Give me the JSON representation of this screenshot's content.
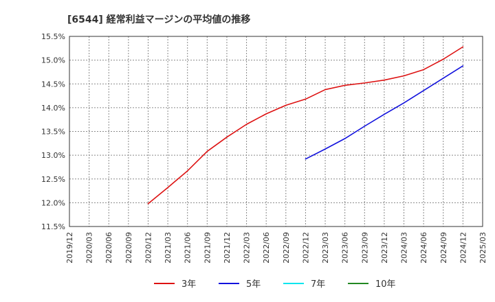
{
  "chart_data": {
    "type": "line",
    "title": "[6544]  経常利益マージンの平均値の推移",
    "xlabel": "",
    "ylabel": "",
    "ylim": [
      11.5,
      15.5
    ],
    "y_ticks": [
      "11.5%",
      "12.0%",
      "12.5%",
      "13.0%",
      "13.5%",
      "14.0%",
      "14.5%",
      "15.0%",
      "15.5%"
    ],
    "x_ticks": [
      "2019/12",
      "2020/03",
      "2020/06",
      "2020/09",
      "2020/12",
      "2021/03",
      "2021/06",
      "2021/09",
      "2021/12",
      "2022/03",
      "2022/06",
      "2022/09",
      "2022/12",
      "2023/03",
      "2023/06",
      "2023/09",
      "2023/12",
      "2024/03",
      "2024/06",
      "2024/09",
      "2024/12",
      "2025/03"
    ],
    "grid": true,
    "legend_position": "bottom",
    "series": [
      {
        "name": "3年",
        "color": "#dd1111",
        "points": [
          {
            "x": "2020/12",
            "y": 11.98
          },
          {
            "x": "2021/03",
            "y": 12.32
          },
          {
            "x": "2021/06",
            "y": 12.67
          },
          {
            "x": "2021/09",
            "y": 13.08
          },
          {
            "x": "2021/12",
            "y": 13.38
          },
          {
            "x": "2022/03",
            "y": 13.65
          },
          {
            "x": "2022/06",
            "y": 13.87
          },
          {
            "x": "2022/09",
            "y": 14.05
          },
          {
            "x": "2022/12",
            "y": 14.18
          },
          {
            "x": "2023/03",
            "y": 14.38
          },
          {
            "x": "2023/06",
            "y": 14.47
          },
          {
            "x": "2023/09",
            "y": 14.52
          },
          {
            "x": "2023/12",
            "y": 14.58
          },
          {
            "x": "2024/03",
            "y": 14.67
          },
          {
            "x": "2024/06",
            "y": 14.8
          },
          {
            "x": "2024/09",
            "y": 15.02
          },
          {
            "x": "2024/12",
            "y": 15.28
          }
        ]
      },
      {
        "name": "5年",
        "color": "#1111dd",
        "points": [
          {
            "x": "2022/12",
            "y": 12.92
          },
          {
            "x": "2023/03",
            "y": 13.13
          },
          {
            "x": "2023/06",
            "y": 13.35
          },
          {
            "x": "2023/09",
            "y": 13.61
          },
          {
            "x": "2023/12",
            "y": 13.86
          },
          {
            "x": "2024/03",
            "y": 14.1
          },
          {
            "x": "2024/06",
            "y": 14.36
          },
          {
            "x": "2024/09",
            "y": 14.62
          },
          {
            "x": "2024/12",
            "y": 14.88
          }
        ]
      },
      {
        "name": "7年",
        "color": "#00e5ee",
        "points": []
      },
      {
        "name": "10年",
        "color": "#228822",
        "points": []
      }
    ]
  }
}
